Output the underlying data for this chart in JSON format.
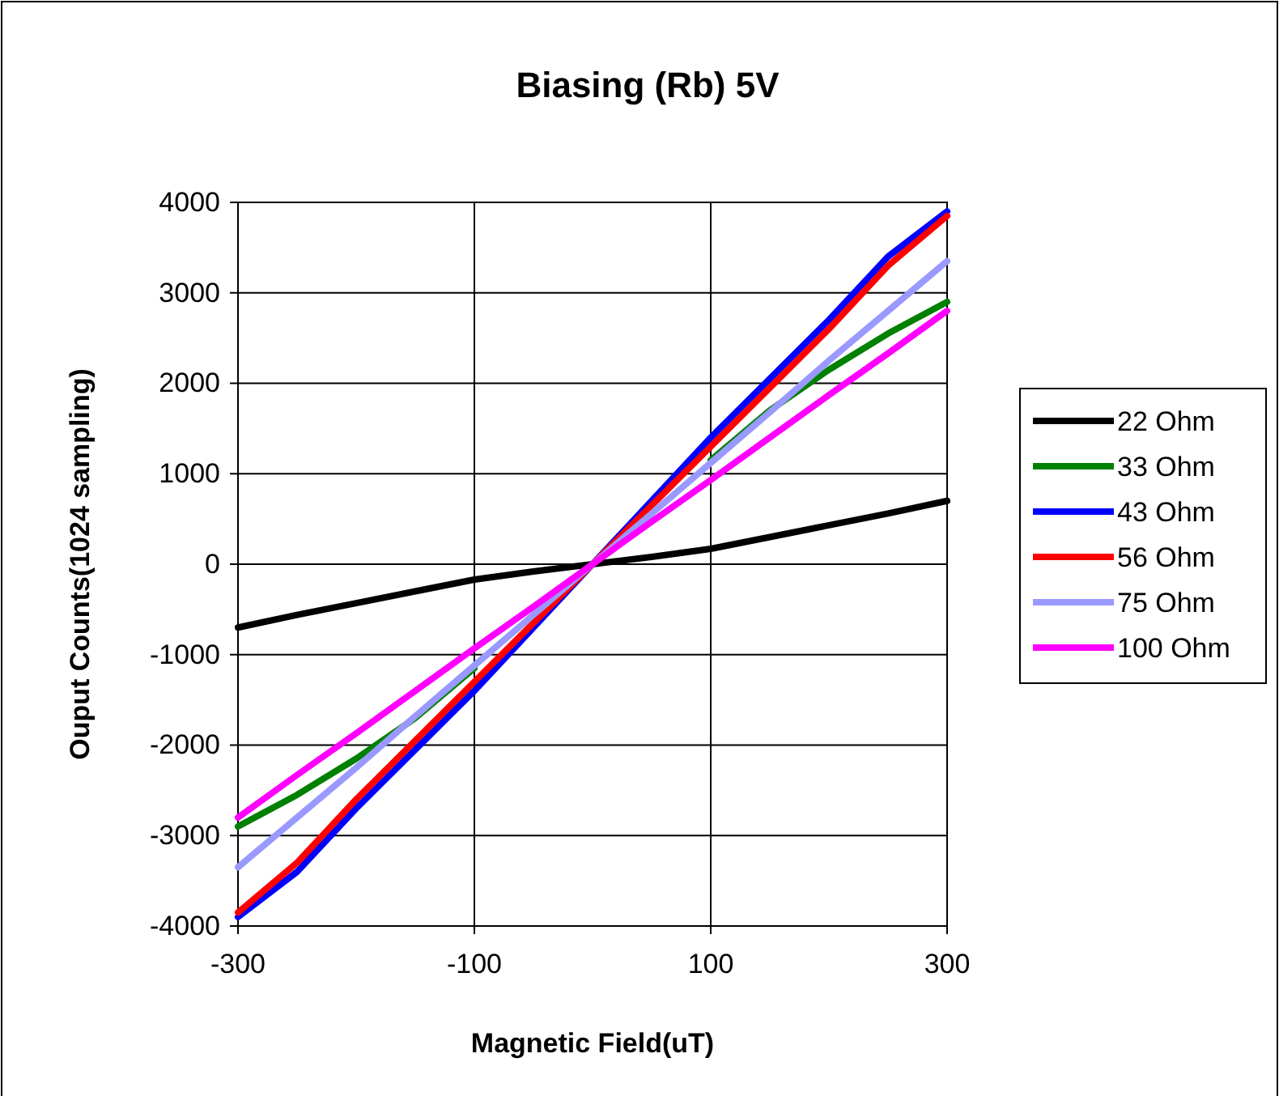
{
  "chart_data": {
    "type": "line",
    "title": "Biasing (Rb) 5V",
    "xlabel": "Magnetic Field(uT)",
    "ylabel": "Ouput Counts(1024 sampling)",
    "x": [
      -300,
      -250,
      -200,
      -150,
      -100,
      -50,
      0,
      50,
      100,
      150,
      200,
      250,
      300
    ],
    "xlim": [
      -300,
      300
    ],
    "xticks": [
      -300,
      -100,
      100,
      300
    ],
    "ylim": [
      -4000,
      4000
    ],
    "yticks": [
      -4000,
      -3000,
      -2000,
      -1000,
      0,
      1000,
      2000,
      3000,
      4000
    ],
    "grid": true,
    "legend": "right",
    "marker": "none",
    "line_style": "solid",
    "series": [
      {
        "name": "22 Ohm",
        "color": "#000000",
        "values": [
          -700,
          -560,
          -430,
          -300,
          -170,
          -80,
          0,
          80,
          170,
          300,
          430,
          560,
          700
        ]
      },
      {
        "name": "33 Ohm",
        "color": "#008000",
        "values": [
          -2900,
          -2550,
          -2150,
          -1700,
          -1150,
          null,
          null,
          null,
          1150,
          1700,
          2150,
          2550,
          2900
        ]
      },
      {
        "name": "43 Ohm",
        "color": "#0000ff",
        "values": [
          -3900,
          -3400,
          -2700,
          -2050,
          -1400,
          -700,
          0,
          700,
          1400,
          2050,
          2700,
          3400,
          3900
        ]
      },
      {
        "name": "56 Ohm",
        "color": "#ff0000",
        "values": [
          -3850,
          -3300,
          -2600,
          -1950,
          -1300,
          -650,
          0,
          650,
          1300,
          1950,
          2600,
          3300,
          3850
        ]
      },
      {
        "name": "75 Ohm",
        "color": "#9999ff",
        "values": [
          -3350,
          -2800,
          -2250,
          -1680,
          -1120,
          -560,
          0,
          560,
          1120,
          1680,
          2250,
          2800,
          3350
        ]
      },
      {
        "name": "100 Ohm",
        "color": "#ff00ff",
        "values": [
          -2800,
          -2330,
          -1870,
          -1400,
          -930,
          -470,
          0,
          470,
          930,
          1400,
          1870,
          2330,
          2800
        ]
      }
    ]
  }
}
